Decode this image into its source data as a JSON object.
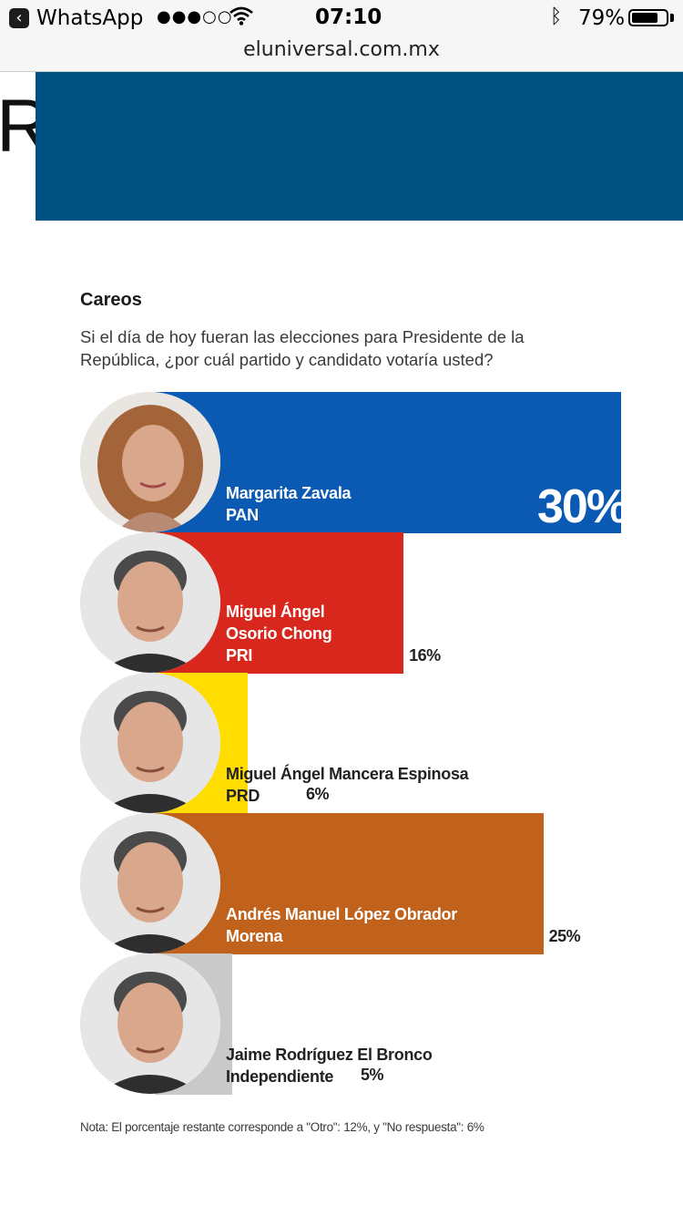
{
  "status_bar": {
    "back_app": "WhatsApp",
    "signal": "●●●○○",
    "time": "07:10",
    "battery_text": "79%",
    "battery_level": 0.79
  },
  "browser": {
    "url": "eluniversal.com.mx"
  },
  "page": {
    "header_letter": "R",
    "banner_color": "#005283"
  },
  "graphic": {
    "title": "Careos",
    "subtitle": "Si el día de hoy fueran las elecciones para Presidente de la República, ¿por cuál partido y candidato votaría usted?",
    "note": "Nota: El porcentaje restante corresponde a \"Otro\": 12%, y \"No respuesta\": 6%"
  },
  "chart_data": {
    "type": "bar",
    "orientation": "horizontal",
    "value_suffix": "%",
    "categories": [
      "Margarita Zavala PAN",
      "Miguel Ángel Osorio Chong PRI",
      "Miguel Ángel Mancera Espinosa PRD",
      "Andrés Manuel López Obrador Morena",
      "Jaime Rodríguez El Bronco Independiente"
    ],
    "values": [
      30,
      16,
      6,
      25,
      5
    ],
    "bars": [
      {
        "name_lines": [
          "Margarita Zavala",
          "PAN"
        ],
        "value": 30,
        "label": "30%",
        "color": "#0a5ab4",
        "text_color": "#ffffff",
        "avatar": "woman-portrait"
      },
      {
        "name_lines": [
          "Miguel Ángel",
          "Osorio Chong",
          "PRI"
        ],
        "value": 16,
        "label": "16%",
        "color": "#d8281e",
        "text_color": "#ffffff",
        "avatar": "man-portrait"
      },
      {
        "name_lines": [
          "Miguel Ángel Mancera Espinosa",
          "PRD"
        ],
        "value": 6,
        "label": "6%",
        "color": "#ffdd00",
        "text_color": "#222222",
        "avatar": "man-portrait"
      },
      {
        "name_lines": [
          "Andrés Manuel López Obrador",
          "Morena"
        ],
        "value": 25,
        "label": "25%",
        "color": "#c0621b",
        "text_color": "#ffffff",
        "avatar": "man-portrait"
      },
      {
        "name_lines": [
          "Jaime Rodríguez El Bronco",
          "Independiente"
        ],
        "value": 5,
        "label": "5%",
        "color": "#c9c9c9",
        "text_color": "#222222",
        "avatar": "man-portrait"
      }
    ]
  }
}
